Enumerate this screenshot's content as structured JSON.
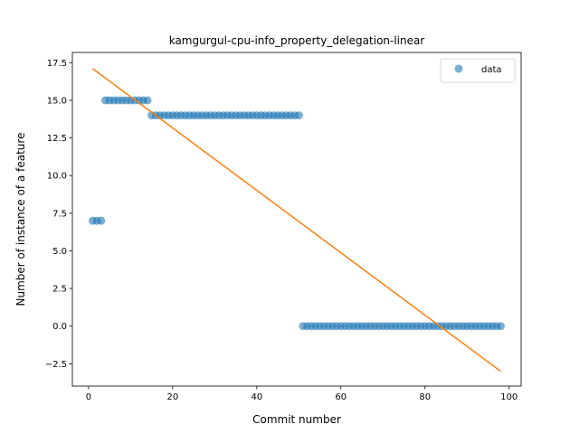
{
  "chart_data": {
    "type": "scatter",
    "title": "kamgurgul-cpu-info_property_delegation-linear",
    "xlabel": "Commit number",
    "ylabel": "Number of instance of a feature",
    "xlim": [
      -3.85,
      102.85
    ],
    "ylim": [
      -3.98,
      18.18
    ],
    "xticks": [
      0,
      20,
      40,
      60,
      80,
      100
    ],
    "xtick_labels": [
      "0",
      "20",
      "40",
      "60",
      "80",
      "100"
    ],
    "yticks": [
      -2.5,
      0.0,
      2.5,
      5.0,
      7.5,
      10.0,
      12.5,
      15.0,
      17.5
    ],
    "ytick_labels": [
      "−2.5",
      "0.0",
      "2.5",
      "5.0",
      "7.5",
      "10.0",
      "12.5",
      "15.0",
      "17.5"
    ],
    "grid": false,
    "legend": {
      "placement": "top-right",
      "entries": [
        "data"
      ]
    },
    "series": [
      {
        "name": "data",
        "kind": "scatter",
        "color": "#1f77b4",
        "segments": [
          {
            "x_start": 1,
            "x_end": 3,
            "y": 7
          },
          {
            "x_start": 4,
            "x_end": 14,
            "y": 15
          },
          {
            "x_start": 15,
            "x_end": 50,
            "y": 14
          },
          {
            "x_start": 51,
            "x_end": 98,
            "y": 0
          }
        ]
      },
      {
        "kind": "line",
        "color": "#ff7f0e",
        "x": [
          1,
          98
        ],
        "y": [
          17.1,
          -3.0
        ]
      }
    ]
  }
}
